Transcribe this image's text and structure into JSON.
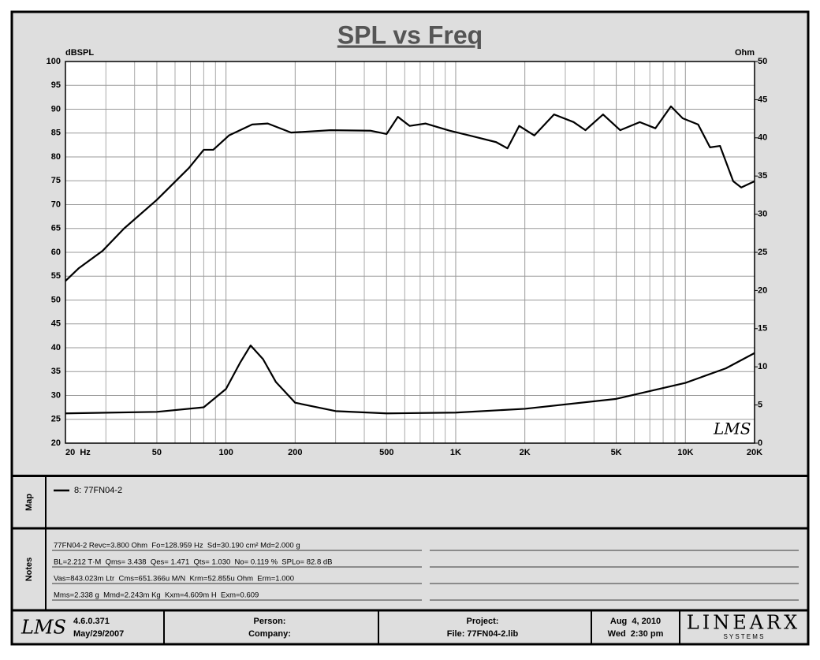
{
  "chart_data": {
    "type": "line",
    "title": "SPL vs Freq",
    "y_label": "dBSPL",
    "y2_label": "Ohm",
    "log_x": true,
    "grid": true,
    "xlim": [
      20,
      20000
    ],
    "xticks": [
      {
        "value": 20,
        "label": "20  Hz"
      },
      50,
      100,
      200,
      500,
      {
        "value": 1000,
        "label": "1K"
      },
      {
        "value": 2000,
        "label": "2K"
      },
      {
        "value": 5000,
        "label": "5K"
      },
      {
        "value": 10000,
        "label": "10K"
      },
      {
        "value": 20000,
        "label": "20K"
      }
    ],
    "x_gridlines": [
      30,
      40,
      60,
      70,
      80,
      90,
      300,
      400,
      600,
      700,
      800,
      900,
      3000,
      4000,
      6000,
      7000,
      8000,
      9000
    ],
    "ylim": [
      20,
      100
    ],
    "yticks": [
      20,
      25,
      30,
      35,
      40,
      45,
      50,
      55,
      60,
      65,
      70,
      75,
      80,
      85,
      90,
      95,
      100
    ],
    "y2lim": [
      0,
      50
    ],
    "y2ticks": [
      0,
      5,
      10,
      15,
      20,
      25,
      30,
      35,
      40,
      45,
      50
    ],
    "series": [
      {
        "name": "8: 77FN04-2",
        "color": "#000000",
        "x": [
          20,
          22.9,
          29,
          36,
          50,
          69,
          80,
          88,
          103,
          130,
          152,
          192,
          285,
          425,
          500,
          560,
          630,
          740,
          940,
          1190,
          1500,
          1680,
          1890,
          2200,
          2680,
          3260,
          3670,
          4380,
          5200,
          6330,
          7400,
          8650,
          9730,
          11360,
          12800,
          14150,
          16150,
          17500,
          20000
        ],
        "values": [
          54,
          56.7,
          60.3,
          65,
          71,
          77.7,
          81.5,
          81.5,
          84.5,
          86.8,
          87,
          85.1,
          85.6,
          85.5,
          84.8,
          88.4,
          86.5,
          87,
          85.5,
          84.3,
          83.1,
          81.8,
          86.5,
          84.5,
          88.9,
          87.3,
          85.6,
          88.9,
          85.6,
          87.3,
          86,
          90.6,
          88.1,
          86.8,
          82,
          82.3,
          74.9,
          73.6,
          74.9
        ]
      },
      {
        "color": "#000000",
        "axis": "y2",
        "x": [
          20,
          50,
          80,
          100,
          115,
          128,
          145,
          165,
          200,
          300,
          500,
          1000,
          2000,
          5000,
          10000,
          15000,
          20000
        ],
        "values": [
          3.9,
          4.1,
          4.7,
          7.1,
          10.5,
          12.8,
          11,
          8,
          5.3,
          4.2,
          3.9,
          4,
          4.5,
          5.8,
          7.9,
          9.8,
          11.8
        ]
      }
    ]
  },
  "signature": "LMS",
  "map": {
    "label": "Map"
  },
  "notes": {
    "label": "Notes",
    "lines": [
      "77FN04-2 Revc=3.800 Ohm  Fo=128.959 Hz  Sd=30.190 cm² Md=2.000 g",
      "BL=2.212 T·M  Qms= 3.438  Qes= 1.471  Qts= 1.030  No= 0.119 %  SPLo= 82.8 dB",
      "Vas=843.023m Ltr  Cms=651.366u M/N  Krm=52.855u Ohm  Erm=1.000",
      "Mms=2.338 g  Mmd=2.243m Kg  Kxm=4.609m H  Exm=0.609"
    ]
  },
  "footer": {
    "logo": "LMS",
    "version": "4.6.0.371",
    "date": "May/29/2007",
    "person": "Person:",
    "company": "Company:",
    "project": "Project:",
    "file": "File: 77FN04-2.lib",
    "run_date": "Aug  4, 2010",
    "run_time": "Wed  2:30 pm",
    "brand": "LINEARX",
    "brand_sub": "S Y S T E M S"
  }
}
